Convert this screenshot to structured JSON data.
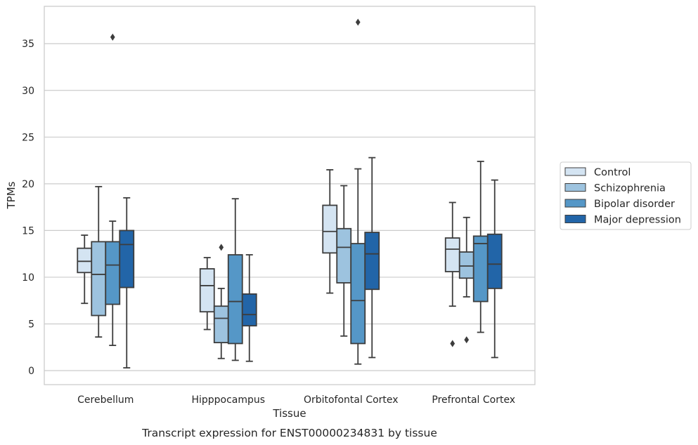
{
  "chart_data": {
    "type": "box",
    "xlabel": "Tissue",
    "ylabel": "TPMs",
    "caption": "Transcript expression for ENST00000234831 by tissue",
    "ylim": [
      -1.5,
      39
    ],
    "yticks": [
      0,
      5,
      10,
      15,
      20,
      25,
      30,
      35
    ],
    "grid": "horizontal",
    "legend_position": "right",
    "categories": [
      "Cerebellum",
      "Hipppocampus",
      "Orbitofontal Cortex",
      "Prefrontal Cortex"
    ],
    "series": [
      {
        "name": "Control",
        "color": "#d4e4f2",
        "boxes": [
          {
            "whislo": 7.2,
            "q1": 10.5,
            "med": 11.7,
            "q3": 13.1,
            "whishi": 14.5,
            "fliers": []
          },
          {
            "whislo": 4.4,
            "q1": 6.3,
            "med": 9.1,
            "q3": 10.9,
            "whishi": 12.1,
            "fliers": []
          },
          {
            "whislo": 8.3,
            "q1": 12.6,
            "med": 14.9,
            "q3": 17.7,
            "whishi": 21.5,
            "fliers": []
          },
          {
            "whislo": 6.9,
            "q1": 10.6,
            "med": 13.0,
            "q3": 14.2,
            "whishi": 18.0,
            "fliers": [
              2.9
            ]
          }
        ]
      },
      {
        "name": "Schizophrenia",
        "color": "#9dc3df",
        "boxes": [
          {
            "whislo": 3.6,
            "q1": 5.9,
            "med": 10.3,
            "q3": 13.8,
            "whishi": 19.7,
            "fliers": []
          },
          {
            "whislo": 1.3,
            "q1": 3.0,
            "med": 5.6,
            "q3": 6.9,
            "whishi": 8.8,
            "fliers": [
              13.2
            ]
          },
          {
            "whislo": 3.7,
            "q1": 9.4,
            "med": 13.2,
            "q3": 15.2,
            "whishi": 19.8,
            "fliers": []
          },
          {
            "whislo": 7.9,
            "q1": 9.9,
            "med": 11.2,
            "q3": 12.7,
            "whishi": 16.4,
            "fliers": [
              3.3
            ]
          }
        ]
      },
      {
        "name": "Bipolar disorder",
        "color": "#5597c7",
        "boxes": [
          {
            "whislo": 2.7,
            "q1": 7.1,
            "med": 11.3,
            "q3": 13.8,
            "whishi": 16.0,
            "fliers": [
              35.7
            ]
          },
          {
            "whislo": 1.1,
            "q1": 2.9,
            "med": 7.4,
            "q3": 12.4,
            "whishi": 18.4,
            "fliers": []
          },
          {
            "whislo": 0.7,
            "q1": 2.9,
            "med": 7.5,
            "q3": 13.6,
            "whishi": 21.6,
            "fliers": [
              37.3
            ]
          },
          {
            "whislo": 4.1,
            "q1": 7.4,
            "med": 13.6,
            "q3": 14.4,
            "whishi": 22.4,
            "fliers": []
          }
        ]
      },
      {
        "name": "Major depression",
        "color": "#2265a8",
        "boxes": [
          {
            "whislo": 0.3,
            "q1": 8.9,
            "med": 13.5,
            "q3": 15.0,
            "whishi": 18.5,
            "fliers": []
          },
          {
            "whislo": 1.0,
            "q1": 4.8,
            "med": 6.0,
            "q3": 8.2,
            "whishi": 12.4,
            "fliers": []
          },
          {
            "whislo": 1.4,
            "q1": 8.7,
            "med": 12.5,
            "q3": 14.8,
            "whishi": 22.8,
            "fliers": []
          },
          {
            "whislo": 1.4,
            "q1": 8.8,
            "med": 11.4,
            "q3": 14.6,
            "whishi": 20.4,
            "fliers": []
          }
        ]
      }
    ]
  }
}
